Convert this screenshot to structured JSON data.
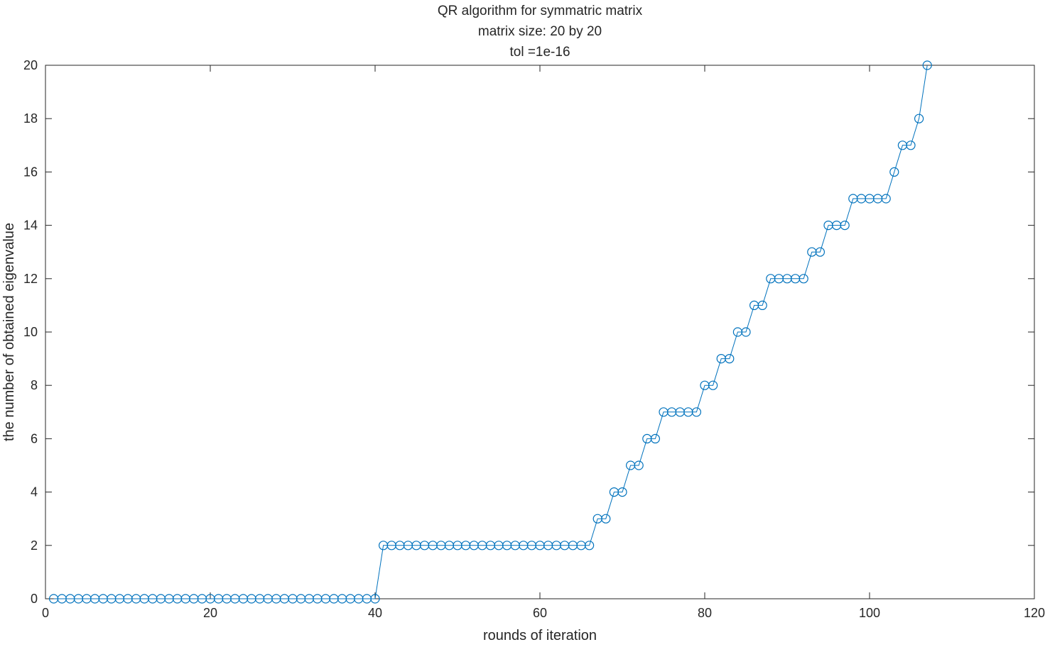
{
  "chart_data": {
    "type": "line",
    "title": [
      "QR algorithm for symmatric matrix",
      "matrix size: 20 by 20",
      "tol =1e-16"
    ],
    "xlabel": "rounds of iteration",
    "ylabel": "the number of obtained eigenvalue",
    "xlim": [
      0,
      120
    ],
    "ylim": [
      0,
      20
    ],
    "xticks": [
      0,
      20,
      40,
      60,
      80,
      100,
      120
    ],
    "yticks": [
      0,
      2,
      4,
      6,
      8,
      10,
      12,
      14,
      16,
      18,
      20
    ],
    "grid": false,
    "marker": "circle",
    "line_color": "#0072BD",
    "series": [
      {
        "x": [
          1,
          2,
          3,
          4,
          5,
          6,
          7,
          8,
          9,
          10,
          11,
          12,
          13,
          14,
          15,
          16,
          17,
          18,
          19,
          20,
          21,
          22,
          23,
          24,
          25,
          26,
          27,
          28,
          29,
          30,
          31,
          32,
          33,
          34,
          35,
          36,
          37,
          38,
          39,
          40,
          41,
          42,
          43,
          44,
          45,
          46,
          47,
          48,
          49,
          50,
          51,
          52,
          53,
          54,
          55,
          56,
          57,
          58,
          59,
          60,
          61,
          62,
          63,
          64,
          65,
          66,
          67,
          68,
          69,
          70,
          71,
          72,
          73,
          74,
          75,
          76,
          77,
          78,
          79,
          80,
          81,
          82,
          83,
          84,
          85,
          86,
          87,
          88,
          89,
          90,
          91,
          92,
          93,
          94,
          95,
          96,
          97,
          98,
          99,
          100,
          101,
          102,
          103,
          104,
          105,
          106,
          107
        ],
        "y": [
          0,
          0,
          0,
          0,
          0,
          0,
          0,
          0,
          0,
          0,
          0,
          0,
          0,
          0,
          0,
          0,
          0,
          0,
          0,
          0,
          0,
          0,
          0,
          0,
          0,
          0,
          0,
          0,
          0,
          0,
          0,
          0,
          0,
          0,
          0,
          0,
          0,
          0,
          0,
          0,
          2,
          2,
          2,
          2,
          2,
          2,
          2,
          2,
          2,
          2,
          2,
          2,
          2,
          2,
          2,
          2,
          2,
          2,
          2,
          2,
          2,
          2,
          2,
          2,
          2,
          2,
          3,
          3,
          4,
          4,
          5,
          5,
          6,
          6,
          7,
          7,
          7,
          7,
          7,
          8,
          8,
          9,
          9,
          10,
          10,
          11,
          11,
          12,
          12,
          12,
          12,
          12,
          13,
          13,
          14,
          14,
          14,
          15,
          15,
          15,
          15,
          15,
          16,
          17,
          17,
          18,
          20
        ]
      }
    ]
  }
}
